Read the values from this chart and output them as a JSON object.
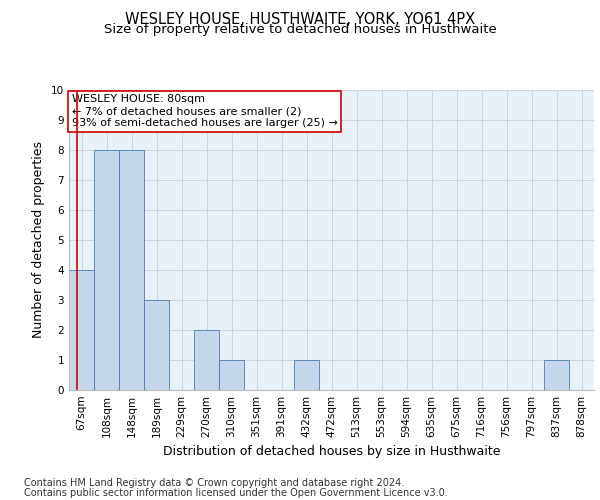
{
  "title": "WESLEY HOUSE, HUSTHWAITE, YORK, YO61 4PX",
  "subtitle": "Size of property relative to detached houses in Husthwaite",
  "xlabel": "Distribution of detached houses by size in Husthwaite",
  "ylabel": "Number of detached properties",
  "categories": [
    "67sqm",
    "108sqm",
    "148sqm",
    "189sqm",
    "229sqm",
    "270sqm",
    "310sqm",
    "351sqm",
    "391sqm",
    "432sqm",
    "472sqm",
    "513sqm",
    "553sqm",
    "594sqm",
    "635sqm",
    "675sqm",
    "716sqm",
    "756sqm",
    "797sqm",
    "837sqm",
    "878sqm"
  ],
  "values": [
    4,
    8,
    8,
    3,
    0,
    2,
    1,
    0,
    0,
    1,
    0,
    0,
    0,
    0,
    0,
    0,
    0,
    0,
    0,
    1,
    0
  ],
  "bar_color": "#c5d8eb",
  "bar_edge_color": "#4a7ab5",
  "grid_color": "#c8d4e0",
  "background_color": "#e8f0f8",
  "annotation_text": "WESLEY HOUSE: 80sqm\n← 7% of detached houses are smaller (2)\n93% of semi-detached houses are larger (25) →",
  "annotation_box_color": "#ffffff",
  "annotation_box_edge": "#cc0000",
  "vline_color": "#cc0000",
  "ylim": [
    0,
    10
  ],
  "yticks": [
    0,
    1,
    2,
    3,
    4,
    5,
    6,
    7,
    8,
    9,
    10
  ],
  "footnote1": "Contains HM Land Registry data © Crown copyright and database right 2024.",
  "footnote2": "Contains public sector information licensed under the Open Government Licence v3.0.",
  "title_fontsize": 10.5,
  "subtitle_fontsize": 9.5,
  "ylabel_fontsize": 9,
  "xlabel_fontsize": 9,
  "tick_fontsize": 7.5,
  "annotation_fontsize": 8,
  "footnote_fontsize": 7
}
